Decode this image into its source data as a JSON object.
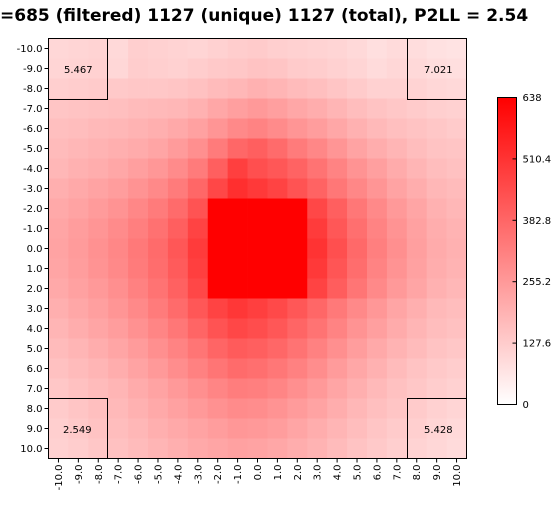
{
  "chart_data": {
    "type": "heatmap",
    "title": "=685 (filtered) 1127 (unique) 1127 (total), P2LL = 2.54",
    "x_ticks": [
      "-10.0",
      "-9.0",
      "-8.0",
      "-7.0",
      "-6.0",
      "-5.0",
      "-4.0",
      "-3.0",
      "-2.0",
      "-1.0",
      "0.0",
      "1.0",
      "2.0",
      "3.0",
      "4.0",
      "5.0",
      "6.0",
      "7.0",
      "8.0",
      "9.0",
      "10.0"
    ],
    "y_ticks": [
      "-10.0",
      "-9.0",
      "-8.0",
      "-7.0",
      "-6.0",
      "-5.0",
      "-4.0",
      "-3.0",
      "-2.0",
      "-1.0",
      "0.0",
      "1.0",
      "2.0",
      "3.0",
      "4.0",
      "5.0",
      "6.0",
      "7.0",
      "8.0",
      "9.0",
      "10.0"
    ],
    "colorbar": {
      "min": 0,
      "max": 638,
      "tick_labels": [
        "638",
        "510.4",
        "382.8",
        "255.2",
        "127.6",
        "0"
      ],
      "tick_values": [
        638,
        510.4,
        382.8,
        255.2,
        127.6,
        0
      ],
      "low_color": "#ffffff",
      "high_color": "#ff0000"
    },
    "corner_values": {
      "top_left": "5.467",
      "top_right": "7.021",
      "bottom_left": "2.549",
      "bottom_right": "5.428"
    },
    "values": [
      [
        100,
        105,
        110,
        95,
        120,
        115,
        110,
        105,
        115,
        125,
        130,
        120,
        115,
        110,
        105,
        95,
        80,
        90,
        85,
        75,
        70
      ],
      [
        105,
        110,
        115,
        100,
        125,
        120,
        115,
        125,
        135,
        140,
        150,
        145,
        130,
        125,
        115,
        105,
        90,
        100,
        95,
        85,
        80
      ],
      [
        120,
        125,
        130,
        135,
        140,
        140,
        145,
        155,
        170,
        180,
        195,
        185,
        170,
        160,
        145,
        130,
        115,
        115,
        110,
        100,
        95
      ],
      [
        145,
        150,
        155,
        160,
        170,
        175,
        180,
        195,
        220,
        240,
        255,
        240,
        220,
        205,
        185,
        165,
        150,
        140,
        130,
        120,
        115
      ],
      [
        160,
        165,
        175,
        180,
        190,
        200,
        215,
        235,
        265,
        295,
        310,
        290,
        265,
        245,
        220,
        195,
        175,
        160,
        150,
        140,
        130
      ],
      [
        170,
        180,
        190,
        200,
        210,
        225,
        250,
        280,
        330,
        380,
        400,
        370,
        330,
        300,
        265,
        230,
        205,
        185,
        165,
        150,
        145
      ],
      [
        180,
        195,
        205,
        220,
        240,
        260,
        290,
        330,
        400,
        480,
        440,
        420,
        390,
        350,
        310,
        270,
        240,
        210,
        185,
        165,
        155
      ],
      [
        200,
        215,
        230,
        245,
        270,
        295,
        330,
        380,
        460,
        520,
        495,
        470,
        430,
        390,
        340,
        300,
        265,
        230,
        205,
        180,
        170
      ],
      [
        215,
        230,
        250,
        270,
        300,
        330,
        370,
        430,
        638,
        638,
        638,
        638,
        638,
        460,
        400,
        340,
        295,
        255,
        225,
        195,
        180
      ],
      [
        225,
        245,
        265,
        290,
        320,
        355,
        400,
        470,
        638,
        638,
        638,
        638,
        638,
        490,
        420,
        360,
        310,
        270,
        235,
        205,
        190
      ],
      [
        230,
        250,
        275,
        300,
        335,
        370,
        420,
        490,
        638,
        638,
        638,
        638,
        638,
        510,
        440,
        375,
        320,
        280,
        240,
        210,
        195
      ],
      [
        225,
        245,
        270,
        295,
        330,
        365,
        410,
        480,
        638,
        638,
        638,
        638,
        638,
        495,
        425,
        365,
        310,
        270,
        235,
        205,
        190
      ],
      [
        215,
        235,
        255,
        280,
        315,
        350,
        395,
        460,
        638,
        638,
        638,
        638,
        638,
        470,
        405,
        345,
        295,
        255,
        225,
        195,
        180
      ],
      [
        200,
        220,
        240,
        265,
        295,
        330,
        370,
        420,
        470,
        500,
        480,
        455,
        420,
        380,
        335,
        295,
        260,
        225,
        200,
        175,
        165
      ],
      [
        185,
        205,
        225,
        245,
        275,
        305,
        340,
        385,
        430,
        460,
        445,
        420,
        385,
        350,
        310,
        270,
        240,
        210,
        185,
        165,
        155
      ],
      [
        170,
        185,
        205,
        225,
        250,
        280,
        310,
        345,
        385,
        410,
        400,
        380,
        350,
        315,
        280,
        245,
        215,
        190,
        170,
        150,
        140
      ],
      [
        155,
        170,
        185,
        205,
        230,
        255,
        285,
        315,
        345,
        370,
        360,
        340,
        315,
        285,
        250,
        220,
        195,
        170,
        150,
        135,
        125
      ],
      [
        140,
        155,
        170,
        185,
        210,
        230,
        255,
        280,
        305,
        325,
        320,
        305,
        280,
        255,
        225,
        200,
        175,
        155,
        140,
        125,
        115
      ],
      [
        130,
        145,
        160,
        175,
        195,
        215,
        235,
        255,
        275,
        290,
        285,
        270,
        250,
        230,
        205,
        180,
        160,
        145,
        130,
        115,
        105
      ],
      [
        120,
        135,
        150,
        165,
        180,
        200,
        215,
        230,
        245,
        260,
        255,
        245,
        225,
        205,
        185,
        165,
        145,
        130,
        120,
        105,
        95
      ],
      [
        115,
        125,
        140,
        155,
        170,
        185,
        200,
        215,
        225,
        235,
        230,
        220,
        205,
        190,
        170,
        150,
        135,
        120,
        110,
        100,
        90
      ]
    ]
  }
}
